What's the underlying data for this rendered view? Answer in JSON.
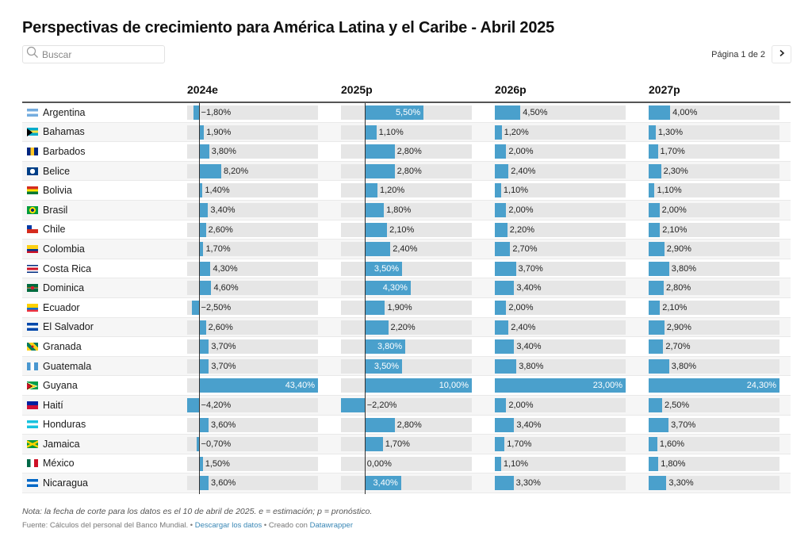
{
  "title": "Perspectivas de crecimiento para América Latina y el Caribe - Abril 2025",
  "search": {
    "placeholder": "Buscar",
    "value": ""
  },
  "pagination": {
    "label": "Página 1 de 2",
    "next_icon": "chevron-right-icon"
  },
  "colors": {
    "bar": "#4aa0cc",
    "bar_bg": "#e6e6e6",
    "header_rule": "#555555",
    "link": "#3a87b5"
  },
  "chart_data": {
    "type": "table",
    "title": "Perspectivas de crecimiento para América Latina y el Caribe - Abril 2025",
    "columns": [
      "2024e",
      "2025p",
      "2026p",
      "2027p"
    ],
    "column_ranges": [
      [
        -4.2,
        43.4
      ],
      [
        -2.2,
        10.0
      ],
      [
        0,
        23.0
      ],
      [
        0,
        24.3
      ]
    ],
    "unit": "%",
    "rows": [
      {
        "country": "Argentina",
        "flag": "argentina",
        "values": [
          -1.8,
          5.5,
          4.5,
          4.0
        ]
      },
      {
        "country": "Bahamas",
        "flag": "bahamas",
        "values": [
          1.9,
          1.1,
          1.2,
          1.3
        ]
      },
      {
        "country": "Barbados",
        "flag": "barbados",
        "values": [
          3.8,
          2.8,
          2.0,
          1.7
        ]
      },
      {
        "country": "Belice",
        "flag": "belize",
        "values": [
          8.2,
          2.8,
          2.4,
          2.3
        ]
      },
      {
        "country": "Bolivia",
        "flag": "bolivia",
        "values": [
          1.4,
          1.2,
          1.1,
          1.1
        ]
      },
      {
        "country": "Brasil",
        "flag": "brazil",
        "values": [
          3.4,
          1.8,
          2.0,
          2.0
        ]
      },
      {
        "country": "Chile",
        "flag": "chile",
        "values": [
          2.6,
          2.1,
          2.2,
          2.1
        ]
      },
      {
        "country": "Colombia",
        "flag": "colombia",
        "values": [
          1.7,
          2.4,
          2.7,
          2.9
        ]
      },
      {
        "country": "Costa Rica",
        "flag": "costa-rica",
        "values": [
          4.3,
          3.5,
          3.7,
          3.8
        ]
      },
      {
        "country": "Dominica",
        "flag": "dominica",
        "values": [
          4.6,
          4.3,
          3.4,
          2.8
        ]
      },
      {
        "country": "Ecuador",
        "flag": "ecuador",
        "values": [
          -2.5,
          1.9,
          2.0,
          2.1
        ]
      },
      {
        "country": "El Salvador",
        "flag": "el-salvador",
        "values": [
          2.6,
          2.2,
          2.4,
          2.9
        ]
      },
      {
        "country": "Granada",
        "flag": "grenada",
        "values": [
          3.7,
          3.8,
          3.4,
          2.7
        ]
      },
      {
        "country": "Guatemala",
        "flag": "guatemala",
        "values": [
          3.7,
          3.5,
          3.8,
          3.8
        ]
      },
      {
        "country": "Guyana",
        "flag": "guyana",
        "values": [
          43.4,
          10.0,
          23.0,
          24.3
        ]
      },
      {
        "country": "Haití",
        "flag": "haiti",
        "values": [
          -4.2,
          -2.2,
          2.0,
          2.5
        ]
      },
      {
        "country": "Honduras",
        "flag": "honduras",
        "values": [
          3.6,
          2.8,
          3.4,
          3.7
        ]
      },
      {
        "country": "Jamaica",
        "flag": "jamaica",
        "values": [
          -0.7,
          1.7,
          1.7,
          1.6
        ]
      },
      {
        "country": "México",
        "flag": "mexico",
        "values": [
          1.5,
          0.0,
          1.1,
          1.8
        ]
      },
      {
        "country": "Nicaragua",
        "flag": "nicaragua",
        "values": [
          3.6,
          3.4,
          3.3,
          3.3
        ]
      }
    ],
    "inside_labels": {
      "2024e": [
        "Guyana"
      ],
      "2025p": [
        "Argentina",
        "Costa Rica",
        "Dominica",
        "Granada",
        "Guatemala",
        "Guyana",
        "Nicaragua"
      ],
      "2026p": [
        "Guyana"
      ],
      "2027p": [
        "Guyana"
      ]
    }
  },
  "footer": {
    "note": "Nota: la fecha de corte para los datos es el 10 de abril de 2025. e = estimación; p = pronóstico.",
    "source_prefix": "Fuente: Cálculos del personal del Banco Mundial.",
    "separator": "•",
    "download_link": "Descargar los datos",
    "created_with": "Creado con",
    "datawrapper_link": "Datawrapper"
  }
}
